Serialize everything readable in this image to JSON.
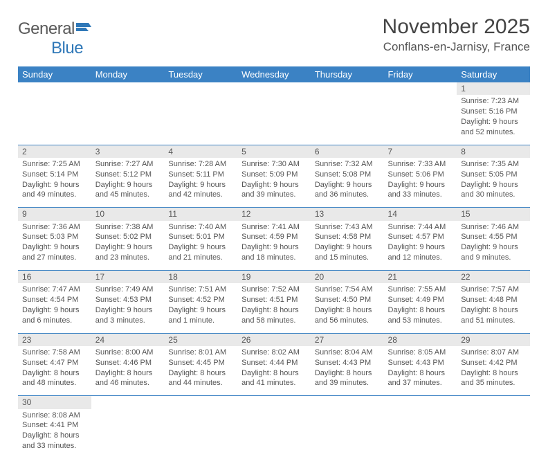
{
  "logo": {
    "text1": "General",
    "text2": "Blue",
    "icon_color": "#2f78b8"
  },
  "title": "November 2025",
  "location": "Conflans-en-Jarnisy, France",
  "colors": {
    "header_bg": "#3b82c4",
    "header_fg": "#ffffff",
    "daynum_bg": "#e9e9e9",
    "text": "#555555",
    "rule": "#3b82c4"
  },
  "weekdays": [
    "Sunday",
    "Monday",
    "Tuesday",
    "Wednesday",
    "Thursday",
    "Friday",
    "Saturday"
  ],
  "weeks": [
    [
      null,
      null,
      null,
      null,
      null,
      null,
      {
        "n": "1",
        "sunrise": "7:23 AM",
        "sunset": "5:16 PM",
        "daylight": "9 hours and 52 minutes."
      }
    ],
    [
      {
        "n": "2",
        "sunrise": "7:25 AM",
        "sunset": "5:14 PM",
        "daylight": "9 hours and 49 minutes."
      },
      {
        "n": "3",
        "sunrise": "7:27 AM",
        "sunset": "5:12 PM",
        "daylight": "9 hours and 45 minutes."
      },
      {
        "n": "4",
        "sunrise": "7:28 AM",
        "sunset": "5:11 PM",
        "daylight": "9 hours and 42 minutes."
      },
      {
        "n": "5",
        "sunrise": "7:30 AM",
        "sunset": "5:09 PM",
        "daylight": "9 hours and 39 minutes."
      },
      {
        "n": "6",
        "sunrise": "7:32 AM",
        "sunset": "5:08 PM",
        "daylight": "9 hours and 36 minutes."
      },
      {
        "n": "7",
        "sunrise": "7:33 AM",
        "sunset": "5:06 PM",
        "daylight": "9 hours and 33 minutes."
      },
      {
        "n": "8",
        "sunrise": "7:35 AM",
        "sunset": "5:05 PM",
        "daylight": "9 hours and 30 minutes."
      }
    ],
    [
      {
        "n": "9",
        "sunrise": "7:36 AM",
        "sunset": "5:03 PM",
        "daylight": "9 hours and 27 minutes."
      },
      {
        "n": "10",
        "sunrise": "7:38 AM",
        "sunset": "5:02 PM",
        "daylight": "9 hours and 23 minutes."
      },
      {
        "n": "11",
        "sunrise": "7:40 AM",
        "sunset": "5:01 PM",
        "daylight": "9 hours and 21 minutes."
      },
      {
        "n": "12",
        "sunrise": "7:41 AM",
        "sunset": "4:59 PM",
        "daylight": "9 hours and 18 minutes."
      },
      {
        "n": "13",
        "sunrise": "7:43 AM",
        "sunset": "4:58 PM",
        "daylight": "9 hours and 15 minutes."
      },
      {
        "n": "14",
        "sunrise": "7:44 AM",
        "sunset": "4:57 PM",
        "daylight": "9 hours and 12 minutes."
      },
      {
        "n": "15",
        "sunrise": "7:46 AM",
        "sunset": "4:55 PM",
        "daylight": "9 hours and 9 minutes."
      }
    ],
    [
      {
        "n": "16",
        "sunrise": "7:47 AM",
        "sunset": "4:54 PM",
        "daylight": "9 hours and 6 minutes."
      },
      {
        "n": "17",
        "sunrise": "7:49 AM",
        "sunset": "4:53 PM",
        "daylight": "9 hours and 3 minutes."
      },
      {
        "n": "18",
        "sunrise": "7:51 AM",
        "sunset": "4:52 PM",
        "daylight": "9 hours and 1 minute."
      },
      {
        "n": "19",
        "sunrise": "7:52 AM",
        "sunset": "4:51 PM",
        "daylight": "8 hours and 58 minutes."
      },
      {
        "n": "20",
        "sunrise": "7:54 AM",
        "sunset": "4:50 PM",
        "daylight": "8 hours and 56 minutes."
      },
      {
        "n": "21",
        "sunrise": "7:55 AM",
        "sunset": "4:49 PM",
        "daylight": "8 hours and 53 minutes."
      },
      {
        "n": "22",
        "sunrise": "7:57 AM",
        "sunset": "4:48 PM",
        "daylight": "8 hours and 51 minutes."
      }
    ],
    [
      {
        "n": "23",
        "sunrise": "7:58 AM",
        "sunset": "4:47 PM",
        "daylight": "8 hours and 48 minutes."
      },
      {
        "n": "24",
        "sunrise": "8:00 AM",
        "sunset": "4:46 PM",
        "daylight": "8 hours and 46 minutes."
      },
      {
        "n": "25",
        "sunrise": "8:01 AM",
        "sunset": "4:45 PM",
        "daylight": "8 hours and 44 minutes."
      },
      {
        "n": "26",
        "sunrise": "8:02 AM",
        "sunset": "4:44 PM",
        "daylight": "8 hours and 41 minutes."
      },
      {
        "n": "27",
        "sunrise": "8:04 AM",
        "sunset": "4:43 PM",
        "daylight": "8 hours and 39 minutes."
      },
      {
        "n": "28",
        "sunrise": "8:05 AM",
        "sunset": "4:43 PM",
        "daylight": "8 hours and 37 minutes."
      },
      {
        "n": "29",
        "sunrise": "8:07 AM",
        "sunset": "4:42 PM",
        "daylight": "8 hours and 35 minutes."
      }
    ],
    [
      {
        "n": "30",
        "sunrise": "8:08 AM",
        "sunset": "4:41 PM",
        "daylight": "8 hours and 33 minutes."
      },
      null,
      null,
      null,
      null,
      null,
      null
    ]
  ],
  "labels": {
    "sunrise": "Sunrise: ",
    "sunset": "Sunset: ",
    "daylight": "Daylight: "
  }
}
